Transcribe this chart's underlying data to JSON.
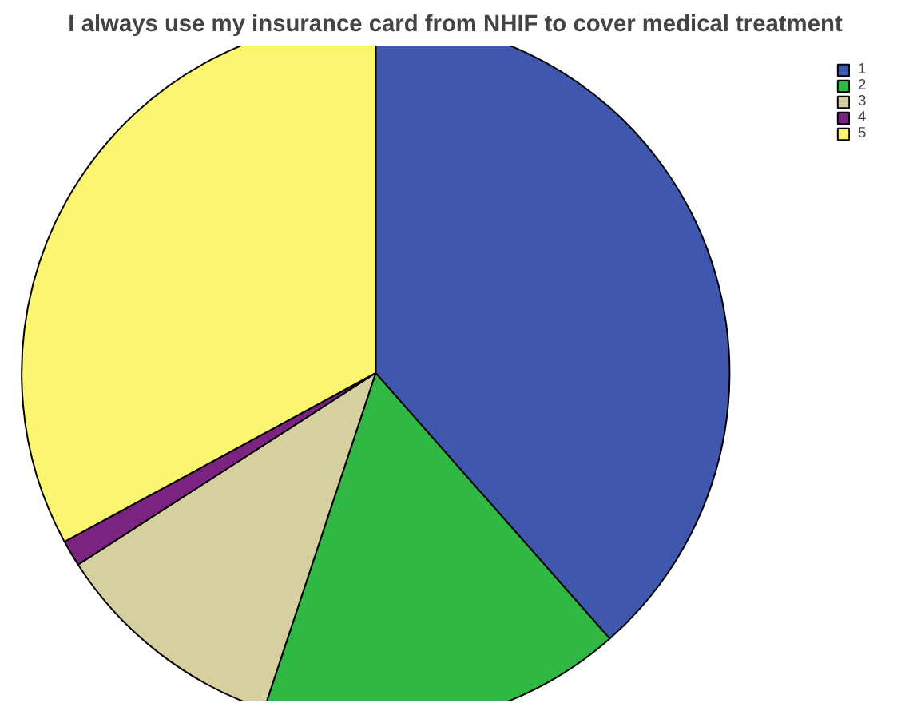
{
  "chart_data": {
    "type": "pie",
    "title": "I always use my insurance card from NHIF to cover medical treatment",
    "categories": [
      "1",
      "2",
      "3",
      "4",
      "5"
    ],
    "values": [
      38.5,
      16.6,
      10.8,
      1.2,
      32.9
    ],
    "colors": [
      "#3f57ac",
      "#2fb844",
      "#d6cf9f",
      "#7a2381",
      "#fbf56f"
    ],
    "legend": "top right"
  }
}
